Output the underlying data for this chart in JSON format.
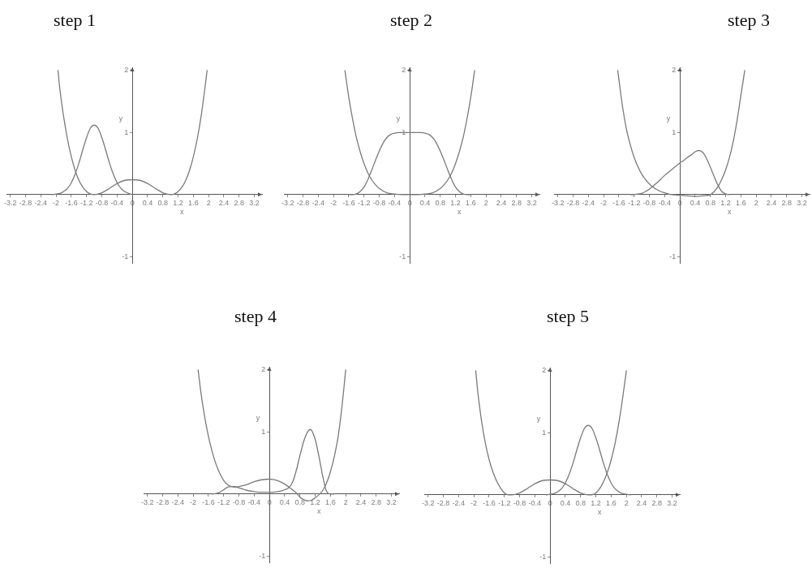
{
  "chart_data": [
    {
      "type": "line",
      "title": "step 1",
      "xlabel": "x",
      "ylabel": "y",
      "xlim": [
        -3.3,
        3.4
      ],
      "ylim": [
        -1.1,
        2.05
      ],
      "xticks": [
        -3.2,
        -2.8,
        -2.4,
        -2,
        -1.6,
        -1.2,
        -0.8,
        -0.4,
        0,
        0.4,
        0.8,
        1.2,
        1.6,
        2,
        2.4,
        2.8,
        3.2
      ],
      "yticks": [
        -1,
        1,
        2
      ],
      "series": [
        {
          "color": "#7a7a7a",
          "x": [
            -1.95,
            -1.9,
            -1.8,
            -1.7,
            -1.6,
            -1.5,
            -1.4,
            -1.3,
            -1.2,
            -1.1,
            -1.0,
            -0.9,
            -0.8,
            -0.6,
            -0.4,
            -0.2,
            0,
            0.2,
            0.4,
            0.6,
            0.8,
            0.9,
            1.0,
            1.1,
            1.2,
            1.3,
            1.4,
            1.5,
            1.6,
            1.7,
            1.8,
            1.9,
            1.96
          ],
          "values": [
            2.0,
            1.7,
            1.25,
            0.89,
            0.61,
            0.39,
            0.23,
            0.12,
            0.05,
            0.01,
            0,
            0.01,
            0.03,
            0.1,
            0.18,
            0.23,
            0.24,
            0.23,
            0.18,
            0.1,
            0.03,
            0.01,
            0,
            0.01,
            0.05,
            0.12,
            0.23,
            0.39,
            0.61,
            0.89,
            1.25,
            1.7,
            2.0
          ]
        },
        {
          "color": "#7a7a7a",
          "x": [
            -2.1,
            -2.0,
            -1.9,
            -1.8,
            -1.7,
            -1.6,
            -1.5,
            -1.4,
            -1.3,
            -1.2,
            -1.1,
            -1.0,
            -0.9,
            -0.8,
            -0.7,
            -0.6,
            -0.5,
            -0.4,
            -0.3,
            -0.2,
            -0.1,
            0
          ],
          "values": [
            0,
            0.01,
            0.02,
            0.05,
            0.1,
            0.19,
            0.33,
            0.51,
            0.72,
            0.92,
            1.07,
            1.12,
            1.07,
            0.92,
            0.72,
            0.51,
            0.33,
            0.19,
            0.1,
            0.05,
            0.02,
            0
          ]
        }
      ]
    },
    {
      "type": "line",
      "title": "step 2",
      "xlabel": "x",
      "ylabel": "y",
      "xlim": [
        -3.3,
        3.4
      ],
      "ylim": [
        -1.1,
        2.05
      ],
      "xticks": [
        -3.2,
        -2.8,
        -2.4,
        -2,
        -1.6,
        -1.2,
        -0.8,
        -0.4,
        0,
        0.4,
        0.8,
        1.2,
        1.6,
        2,
        2.4,
        2.8,
        3.2
      ],
      "yticks": [
        -1,
        1,
        2
      ],
      "series": [
        {
          "color": "#7a7a7a",
          "x": [
            -1.7,
            -1.6,
            -1.5,
            -1.4,
            -1.3,
            -1.2,
            -1.1,
            -1.0,
            -0.9,
            -0.8,
            -0.6,
            -0.4,
            -0.2,
            0,
            0.2,
            0.4,
            0.6,
            0.8,
            0.9,
            1.0,
            1.1,
            1.2,
            1.3,
            1.4,
            1.5,
            1.6,
            1.7
          ],
          "values": [
            2.0,
            1.57,
            1.22,
            0.92,
            0.69,
            0.5,
            0.35,
            0.24,
            0.16,
            0.1,
            0.03,
            0.01,
            0,
            0,
            0,
            0.01,
            0.03,
            0.1,
            0.16,
            0.24,
            0.35,
            0.5,
            0.69,
            0.92,
            1.22,
            1.57,
            2.0
          ]
        },
        {
          "color": "#7a7a7a",
          "x": [
            -1.6,
            -1.5,
            -1.4,
            -1.3,
            -1.2,
            -1.1,
            -1.0,
            -0.9,
            -0.8,
            -0.7,
            -0.6,
            -0.5,
            -0.4,
            -0.3,
            -0.2,
            -0.1,
            0,
            0.1,
            0.2,
            0.3,
            0.4,
            0.5,
            0.6,
            0.7,
            0.8,
            0.9,
            1.0,
            1.1,
            1.2,
            1.3,
            1.4,
            1.5,
            1.6
          ],
          "values": [
            0,
            0,
            0.01,
            0.05,
            0.12,
            0.24,
            0.39,
            0.55,
            0.7,
            0.83,
            0.92,
            0.97,
            0.99,
            1.0,
            1.0,
            1.0,
            1.0,
            1.0,
            1.0,
            1.0,
            0.99,
            0.97,
            0.92,
            0.83,
            0.7,
            0.55,
            0.39,
            0.24,
            0.12,
            0.05,
            0.01,
            0,
            0
          ]
        }
      ]
    },
    {
      "type": "line",
      "title": "step 3",
      "xlabel": "x",
      "ylabel": "y",
      "xlim": [
        -3.3,
        3.4
      ],
      "ylim": [
        -1.1,
        2.05
      ],
      "xticks": [
        -3.2,
        -2.8,
        -2.4,
        -2,
        -1.6,
        -1.2,
        -0.8,
        -0.4,
        0,
        0.4,
        0.8,
        1.2,
        1.6,
        2,
        2.4,
        2.8,
        3.2
      ],
      "yticks": [
        -1,
        1,
        2
      ],
      "series": [
        {
          "color": "#7a7a7a",
          "x": [
            -1.63,
            -1.5,
            -1.4,
            -1.3,
            -1.2,
            -1.1,
            -1.0,
            -0.9,
            -0.8,
            -0.7,
            -0.6,
            -0.5,
            -0.4,
            -0.3,
            -0.2,
            0,
            0.2,
            0.4,
            0.6,
            0.8,
            0.9,
            1.0,
            1.1,
            1.2,
            1.3,
            1.4,
            1.5,
            1.6,
            1.7
          ],
          "values": [
            2.0,
            1.4,
            1.05,
            0.8,
            0.6,
            0.45,
            0.33,
            0.24,
            0.17,
            0.12,
            0.08,
            0.05,
            0.03,
            0.01,
            0,
            -0.01,
            -0.02,
            -0.03,
            -0.02,
            0,
            0.05,
            0.13,
            0.25,
            0.4,
            0.6,
            0.86,
            1.2,
            1.6,
            2.0
          ]
        },
        {
          "color": "#7a7a7a",
          "x": [
            -1.3,
            -1.2,
            -1.1,
            -1.0,
            -0.9,
            -0.8,
            -0.7,
            -0.6,
            -0.5,
            -0.4,
            -0.3,
            -0.2,
            -0.1,
            0,
            0.1,
            0.2,
            0.3,
            0.4,
            0.5,
            0.6,
            0.7,
            0.8,
            0.9,
            1.0,
            1.1,
            1.2,
            1.3
          ],
          "values": [
            0,
            0,
            0.01,
            0.02,
            0.05,
            0.09,
            0.14,
            0.19,
            0.25,
            0.31,
            0.36,
            0.41,
            0.46,
            0.51,
            0.55,
            0.6,
            0.64,
            0.69,
            0.71,
            0.68,
            0.58,
            0.44,
            0.29,
            0.15,
            0.05,
            0.01,
            0
          ]
        }
      ]
    },
    {
      "type": "line",
      "title": "step 4",
      "xlabel": "x",
      "ylabel": "y",
      "xlim": [
        -3.3,
        3.4
      ],
      "ylim": [
        -1.1,
        2.05
      ],
      "xticks": [
        -3.2,
        -2.8,
        -2.4,
        -2,
        -1.6,
        -1.2,
        -0.8,
        -0.4,
        0,
        0.4,
        0.8,
        1.2,
        1.6,
        2,
        2.4,
        2.8,
        3.2
      ],
      "yticks": [
        -1,
        1,
        2
      ],
      "series": [
        {
          "color": "#7a7a7a",
          "x": [
            -1.87,
            -1.8,
            -1.7,
            -1.6,
            -1.5,
            -1.4,
            -1.3,
            -1.2,
            -1.1,
            -1.0,
            -0.9,
            -0.8,
            -0.6,
            -0.4,
            -0.2,
            0,
            0.2,
            0.4,
            0.6,
            0.7,
            0.8,
            0.9,
            1.0,
            1.1,
            1.2,
            1.3,
            1.4,
            1.5,
            1.6,
            1.7,
            1.8,
            1.9,
            2.0
          ],
          "values": [
            2.0,
            1.65,
            1.25,
            0.93,
            0.68,
            0.48,
            0.33,
            0.22,
            0.15,
            0.12,
            0.11,
            0.12,
            0.15,
            0.2,
            0.23,
            0.24,
            0.22,
            0.16,
            0.07,
            0.02,
            -0.05,
            -0.09,
            -0.11,
            -0.1,
            -0.06,
            -0.01,
            0.06,
            0.18,
            0.36,
            0.6,
            0.92,
            1.4,
            2.0
          ]
        },
        {
          "color": "#7a7a7a",
          "x": [
            -1.5,
            -1.4,
            -1.3,
            -1.2,
            -1.1,
            -1.0,
            -0.9,
            -0.8,
            -0.7,
            -0.6,
            -0.5,
            -0.4,
            -0.3,
            -0.2,
            -0.1,
            0,
            0.1,
            0.2,
            0.3,
            0.4,
            0.5,
            0.6,
            0.7,
            0.8,
            0.9,
            1.0,
            1.07,
            1.1,
            1.2,
            1.3,
            1.4,
            1.5,
            1.6,
            1.7
          ],
          "values": [
            0,
            0.01,
            0.03,
            0.07,
            0.11,
            0.12,
            0.12,
            0.1,
            0.08,
            0.06,
            0.05,
            0.04,
            0.03,
            0.03,
            0.03,
            0.03,
            0.03,
            0.04,
            0.05,
            0.07,
            0.1,
            0.18,
            0.37,
            0.62,
            0.85,
            1.0,
            1.04,
            1.03,
            0.88,
            0.6,
            0.28,
            0.04,
            0,
            0
          ]
        }
      ]
    },
    {
      "type": "line",
      "title": "step 5",
      "xlabel": "x",
      "ylabel": "y",
      "xlim": [
        -3.3,
        3.4
      ],
      "ylim": [
        -1.1,
        2.05
      ],
      "xticks": [
        -3.2,
        -2.8,
        -2.4,
        -2,
        -1.6,
        -1.2,
        -0.8,
        -0.4,
        0,
        0.4,
        0.8,
        1.2,
        1.6,
        2,
        2.4,
        2.8,
        3.2
      ],
      "yticks": [
        -1,
        1,
        2
      ],
      "series": [
        {
          "color": "#7a7a7a",
          "x": [
            -1.95,
            -1.9,
            -1.8,
            -1.7,
            -1.6,
            -1.5,
            -1.4,
            -1.3,
            -1.2,
            -1.1,
            -1.0,
            -0.9,
            -0.8,
            -0.6,
            -0.4,
            -0.2,
            0,
            0.2,
            0.4,
            0.6,
            0.8,
            0.9,
            1.0,
            1.1,
            1.2,
            1.3,
            1.4,
            1.5,
            1.6,
            1.7,
            1.8,
            1.9,
            2.0
          ],
          "values": [
            2.0,
            1.68,
            1.2,
            0.84,
            0.57,
            0.37,
            0.22,
            0.11,
            0.03,
            0,
            0,
            0.01,
            0.03,
            0.1,
            0.18,
            0.23,
            0.24,
            0.23,
            0.18,
            0.1,
            0.03,
            0.01,
            0,
            0,
            0.03,
            0.1,
            0.21,
            0.36,
            0.56,
            0.82,
            1.15,
            1.55,
            2.0
          ]
        },
        {
          "color": "#7a7a7a",
          "x": [
            -0.1,
            0,
            0.1,
            0.2,
            0.3,
            0.4,
            0.5,
            0.6,
            0.7,
            0.8,
            0.9,
            1.0,
            1.1,
            1.2,
            1.3,
            1.4,
            1.5,
            1.6,
            1.7,
            1.8,
            1.9,
            2.0,
            2.1
          ],
          "values": [
            0,
            0.01,
            0.02,
            0.05,
            0.1,
            0.19,
            0.33,
            0.51,
            0.72,
            0.92,
            1.07,
            1.12,
            1.07,
            0.92,
            0.72,
            0.51,
            0.33,
            0.19,
            0.1,
            0.05,
            0.02,
            0.01,
            0
          ]
        }
      ]
    }
  ]
}
